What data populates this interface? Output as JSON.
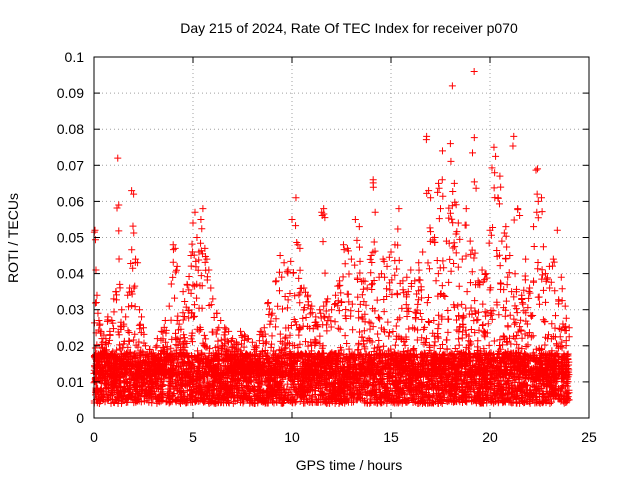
{
  "chart_data": {
    "type": "scatter",
    "title": "Day 215 of 2024, Rate Of TEC Index for receiver p070",
    "xlabel": "GPS time / hours",
    "ylabel": "ROTI / TECUs",
    "xlim": [
      0,
      25
    ],
    "ylim": [
      0,
      0.1
    ],
    "x_ticks": [
      "0",
      "5",
      "10",
      "15",
      "20",
      "25"
    ],
    "y_ticks": [
      "0",
      "0.01",
      "0.02",
      "0.03",
      "0.04",
      "0.05",
      "0.06",
      "0.07",
      "0.08",
      "0.09",
      "0.1"
    ],
    "grid": true,
    "marker": "+",
    "color": "#ff0000",
    "series": [
      {
        "x": [
          0.05,
          0.1,
          0.15,
          0.2,
          0.25,
          0.3,
          0.35,
          0.4,
          0.45,
          0.5,
          0.6,
          0.7,
          0.8,
          0.9,
          1.0,
          1.1,
          1.2,
          1.25,
          1.3,
          1.4,
          1.5,
          1.6,
          1.7,
          1.8,
          1.9,
          2.0,
          2.1,
          2.2,
          2.3,
          2.4,
          2.5,
          2.6,
          2.8,
          3.0,
          3.2,
          3.4,
          3.6,
          3.8,
          4.0,
          4.1,
          4.2,
          4.3,
          4.5,
          4.7,
          4.9,
          5.0,
          5.1,
          5.2,
          5.3,
          5.4,
          5.5,
          5.6,
          5.7,
          5.8,
          5.9,
          6.0,
          6.2,
          6.4,
          6.6,
          6.8,
          7.0,
          7.2,
          7.4,
          7.6,
          7.8,
          8.0,
          8.2,
          8.4,
          8.6,
          8.8,
          9.0,
          9.2,
          9.4,
          9.6,
          9.8,
          10.0,
          10.2,
          10.3,
          10.4,
          10.6,
          10.8,
          11.0,
          11.2,
          11.4,
          11.5,
          11.6,
          11.8,
          12.0,
          12.2,
          12.4,
          12.6,
          12.8,
          13.0,
          13.2,
          13.4,
          13.6,
          13.8,
          14.0,
          14.1,
          14.2,
          14.4,
          14.6,
          14.8,
          15.0,
          15.2,
          15.4,
          15.6,
          15.8,
          16.0,
          16.2,
          16.4,
          16.6,
          16.8,
          16.9,
          17.0,
          17.2,
          17.4,
          17.5,
          17.6,
          17.8,
          18.0,
          18.1,
          18.2,
          18.4,
          18.6,
          18.8,
          19.0,
          19.2,
          19.4,
          19.6,
          19.8,
          20.0,
          20.2,
          20.4,
          20.5,
          20.6,
          20.8,
          21.0,
          21.2,
          21.4,
          21.6,
          21.8,
          22.0,
          22.2,
          22.4,
          22.6,
          22.8,
          23.0,
          23.2,
          23.4,
          23.6,
          23.8,
          24.0
        ],
        "y": [
          0.052,
          0.041,
          0.034,
          0.029,
          0.027,
          0.026,
          0.024,
          0.022,
          0.021,
          0.023,
          0.022,
          0.028,
          0.024,
          0.027,
          0.033,
          0.035,
          0.072,
          0.059,
          0.037,
          0.03,
          0.026,
          0.028,
          0.034,
          0.036,
          0.063,
          0.062,
          0.044,
          0.043,
          0.03,
          0.028,
          0.025,
          0.02,
          0.019,
          0.018,
          0.022,
          0.024,
          0.027,
          0.031,
          0.048,
          0.047,
          0.042,
          0.026,
          0.035,
          0.037,
          0.045,
          0.054,
          0.057,
          0.05,
          0.046,
          0.055,
          0.058,
          0.047,
          0.044,
          0.041,
          0.036,
          0.033,
          0.029,
          0.027,
          0.025,
          0.024,
          0.022,
          0.021,
          0.024,
          0.023,
          0.022,
          0.021,
          0.02,
          0.024,
          0.025,
          0.032,
          0.029,
          0.038,
          0.045,
          0.043,
          0.041,
          0.055,
          0.061,
          0.048,
          0.047,
          0.036,
          0.034,
          0.031,
          0.028,
          0.03,
          0.057,
          0.058,
          0.033,
          0.03,
          0.034,
          0.038,
          0.048,
          0.047,
          0.044,
          0.055,
          0.053,
          0.038,
          0.036,
          0.045,
          0.066,
          0.057,
          0.039,
          0.044,
          0.042,
          0.046,
          0.048,
          0.058,
          0.038,
          0.039,
          0.041,
          0.038,
          0.043,
          0.046,
          0.078,
          0.063,
          0.061,
          0.05,
          0.065,
          0.058,
          0.074,
          0.049,
          0.076,
          0.092,
          0.065,
          0.054,
          0.044,
          0.058,
          0.049,
          0.096,
          0.038,
          0.041,
          0.04,
          0.052,
          0.075,
          0.061,
          0.067,
          0.049,
          0.053,
          0.045,
          0.078,
          0.058,
          0.034,
          0.044,
          0.036,
          0.053,
          0.069,
          0.061,
          0.04,
          0.042,
          0.044,
          0.052,
          0.039,
          0.031,
          0.025
        ]
      }
    ]
  }
}
